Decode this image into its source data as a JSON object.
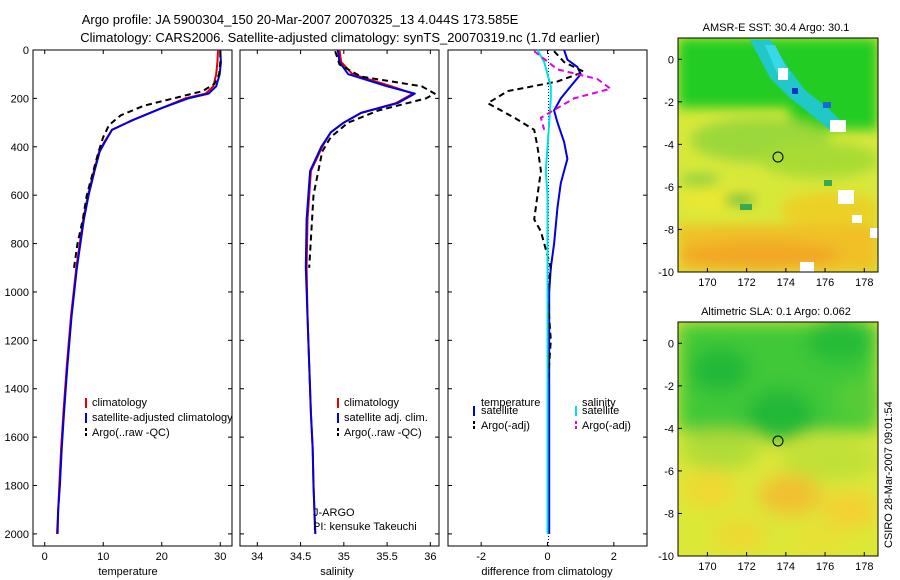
{
  "header": {
    "line1": "Argo profile: JA 5900304_150 20-Mar-2007 20070325_13 4.044S 173.585E",
    "line2": "Climatology: CARS2006. Satellite-adjusted climatology: synTS_20070319.nc (1.7d earlier)"
  },
  "side_text": "CSIRO 28-Mar-2007 09:01:54",
  "credit": {
    "line1": "J-ARGO",
    "line2": "PI: kensuke Takeuchi"
  },
  "colors": {
    "climatology": "#e00000",
    "satellite": "#0000e0",
    "argo": "#000000",
    "sat_diff": "#00e0e0",
    "argo_sal_diff": "#e000e0"
  },
  "chart_data": [
    {
      "type": "line",
      "name": "temperature",
      "xlabel": "temperature",
      "ylabel": "",
      "xlim": [
        -2,
        32
      ],
      "ylim": [
        2050,
        0
      ],
      "xticks": [
        0,
        10,
        20,
        30
      ],
      "yticks": [
        0,
        200,
        400,
        600,
        800,
        1000,
        1200,
        1400,
        1600,
        1800,
        2000
      ],
      "legend": [
        "climatology",
        "satellite-adjusted climatology",
        "Argo(..raw -QC)"
      ],
      "series": [
        {
          "name": "climatology",
          "color": "#e00000",
          "dash": "none",
          "x": [
            29.6,
            29.5,
            29.3,
            28.8,
            27.5,
            24,
            20,
            15,
            11.5,
            10.2,
            9.3,
            8.4,
            7.4,
            6.6,
            5.4,
            4.5,
            3.8,
            3.2,
            2.8,
            2.5,
            2.3,
            2.1
          ],
          "y": [
            0,
            50,
            100,
            150,
            180,
            200,
            240,
            290,
            330,
            380,
            420,
            500,
            600,
            700,
            900,
            1100,
            1300,
            1500,
            1650,
            1800,
            1900,
            2000
          ]
        },
        {
          "name": "satellite-adjusted climatology",
          "color": "#0000e0",
          "dash": "none",
          "x": [
            30.0,
            30.1,
            29.9,
            29.3,
            28,
            24.5,
            20,
            15,
            11.5,
            10.3,
            9.4,
            8.5,
            7.5,
            6.7,
            5.5,
            4.6,
            3.9,
            3.3,
            2.9,
            2.6,
            2.3,
            2.2
          ],
          "y": [
            0,
            50,
            100,
            150,
            180,
            200,
            240,
            290,
            330,
            380,
            420,
            500,
            600,
            700,
            900,
            1100,
            1300,
            1500,
            1650,
            1800,
            1900,
            2000
          ]
        },
        {
          "name": "Argo(..raw -QC)",
          "color": "#000000",
          "dash": "6,4",
          "x": [
            30.0,
            30.0,
            29.8,
            29.0,
            27,
            22,
            17,
            13,
            11,
            10,
            9.2,
            8.3,
            7.2,
            6.5,
            5.6,
            5.0
          ],
          "y": [
            5,
            50,
            100,
            140,
            170,
            200,
            230,
            270,
            310,
            360,
            420,
            500,
            600,
            700,
            800,
            900
          ]
        }
      ]
    },
    {
      "type": "line",
      "name": "salinity",
      "xlabel": "salinity",
      "ylabel": "",
      "xlim": [
        33.8,
        36.1
      ],
      "ylim": [
        2050,
        0
      ],
      "xticks": [
        34,
        34.5,
        35,
        35.5,
        36
      ],
      "yticks": [
        0,
        200,
        400,
        600,
        800,
        1000,
        1200,
        1400,
        1600,
        1800,
        2000
      ],
      "legend": [
        "climatology",
        "satellite adj. clim.",
        "Argo(..raw -QC)"
      ],
      "series": [
        {
          "name": "climatology",
          "color": "#e00000",
          "dash": "none",
          "x": [
            34.95,
            34.97,
            35.1,
            35.55,
            35.8,
            35.6,
            35.2,
            35.0,
            34.85,
            34.75,
            34.62,
            34.58,
            34.57,
            34.58,
            34.6,
            34.62,
            34.64,
            34.65,
            34.66,
            34.67
          ],
          "y": [
            0,
            50,
            100,
            150,
            180,
            220,
            260,
            300,
            340,
            400,
            500,
            700,
            900,
            1100,
            1300,
            1500,
            1650,
            1800,
            1900,
            2000
          ]
        },
        {
          "name": "satellite adj. clim.",
          "color": "#0000e0",
          "dash": "none",
          "x": [
            34.93,
            34.95,
            35.05,
            35.5,
            35.82,
            35.62,
            35.2,
            35.0,
            34.85,
            34.74,
            34.61,
            34.57,
            34.56,
            34.58,
            34.6,
            34.62,
            34.64,
            34.65,
            34.66,
            34.67
          ],
          "y": [
            0,
            50,
            100,
            150,
            180,
            220,
            260,
            300,
            340,
            400,
            500,
            700,
            900,
            1100,
            1300,
            1500,
            1650,
            1800,
            1900,
            2000
          ]
        },
        {
          "name": "Argo(..raw -QC)",
          "color": "#000000",
          "dash": "6,4",
          "x": [
            34.9,
            34.95,
            35.2,
            35.9,
            36.05,
            35.95,
            35.4,
            35.05,
            34.85,
            34.75,
            34.65,
            34.6
          ],
          "y": [
            5,
            60,
            110,
            150,
            180,
            200,
            250,
            300,
            360,
            420,
            600,
            900
          ]
        }
      ]
    },
    {
      "type": "line",
      "name": "difference from climatology",
      "xlabel": "difference from climatology",
      "ylabel": "",
      "xlim": [
        -3,
        3
      ],
      "ylim": [
        2050,
        0
      ],
      "xticks": [
        -2,
        0,
        2
      ],
      "yticks": [
        0,
        200,
        400,
        600,
        800,
        1000,
        1200,
        1400,
        1600,
        1800,
        2000
      ],
      "legend_temperature": [
        "temperature",
        "satellite",
        "Argo(-adj)"
      ],
      "legend_salinity": [
        "salinity",
        "satellite",
        "Argo(-adj)"
      ],
      "series": [
        {
          "name": "temperature satellite",
          "color": "#0000e0",
          "dash": "none",
          "x": [
            0.5,
            0.6,
            0.9,
            1.0,
            0.7,
            0.4,
            0.2,
            0.3,
            0.5,
            0.6,
            0.4,
            0.3,
            0.2,
            0.1,
            0.05,
            0.05,
            0.05,
            0.05,
            0.05,
            0.05,
            0.05
          ],
          "y": [
            0,
            40,
            70,
            100,
            150,
            200,
            250,
            300,
            380,
            450,
            550,
            650,
            800,
            900,
            1000,
            1200,
            1400,
            1600,
            1800,
            1900,
            2000
          ]
        },
        {
          "name": "temperature Argo(-adj)",
          "color": "#000000",
          "dash": "6,4",
          "x": [
            0.2,
            0.5,
            1.1,
            0.3,
            -1.2,
            -1.8,
            -1.0,
            -0.4,
            -0.3,
            -0.2,
            -0.3,
            -0.4,
            -0.2,
            -0.1,
            0.1,
            0.0,
            0.1,
            0.0
          ],
          "y": [
            5,
            50,
            90,
            130,
            170,
            220,
            280,
            330,
            400,
            500,
            600,
            700,
            750,
            800,
            900,
            1000,
            1200,
            1400
          ]
        },
        {
          "name": "salinity satellite",
          "color": "#00e0e0",
          "dash": "none",
          "x": [
            -0.3,
            -0.1,
            0.0,
            0.1,
            0.1,
            0.05,
            0.0,
            -0.05,
            0.0,
            0.0,
            0.0,
            0.0,
            0.0,
            0.0,
            0.0,
            0.0
          ],
          "y": [
            0,
            50,
            100,
            150,
            200,
            300,
            400,
            500,
            600,
            800,
            1000,
            1200,
            1400,
            1600,
            1800,
            2000
          ]
        },
        {
          "name": "salinity Argo(-adj)",
          "color": "#e000e0",
          "dash": "6,4",
          "x": [
            -0.4,
            0.3,
            1.5,
            1.9,
            0.8,
            -0.2,
            -0.1
          ],
          "y": [
            5,
            80,
            120,
            160,
            200,
            280,
            330
          ]
        }
      ]
    }
  ],
  "maps": [
    {
      "title": "AMSR-E SST: 30.4 Argo: 30.1",
      "xticks": [
        "170",
        "172",
        "174",
        "176",
        "178"
      ],
      "yticks": [
        "0",
        "-2",
        "-4",
        "-6",
        "-8",
        "-10"
      ]
    },
    {
      "title": "Altimetric SLA: 0.1 Argo: 0.062",
      "xticks": [
        "170",
        "172",
        "174",
        "176",
        "178"
      ],
      "yticks": [
        "0",
        "-2",
        "-4",
        "-6",
        "-8",
        "-10"
      ]
    }
  ]
}
